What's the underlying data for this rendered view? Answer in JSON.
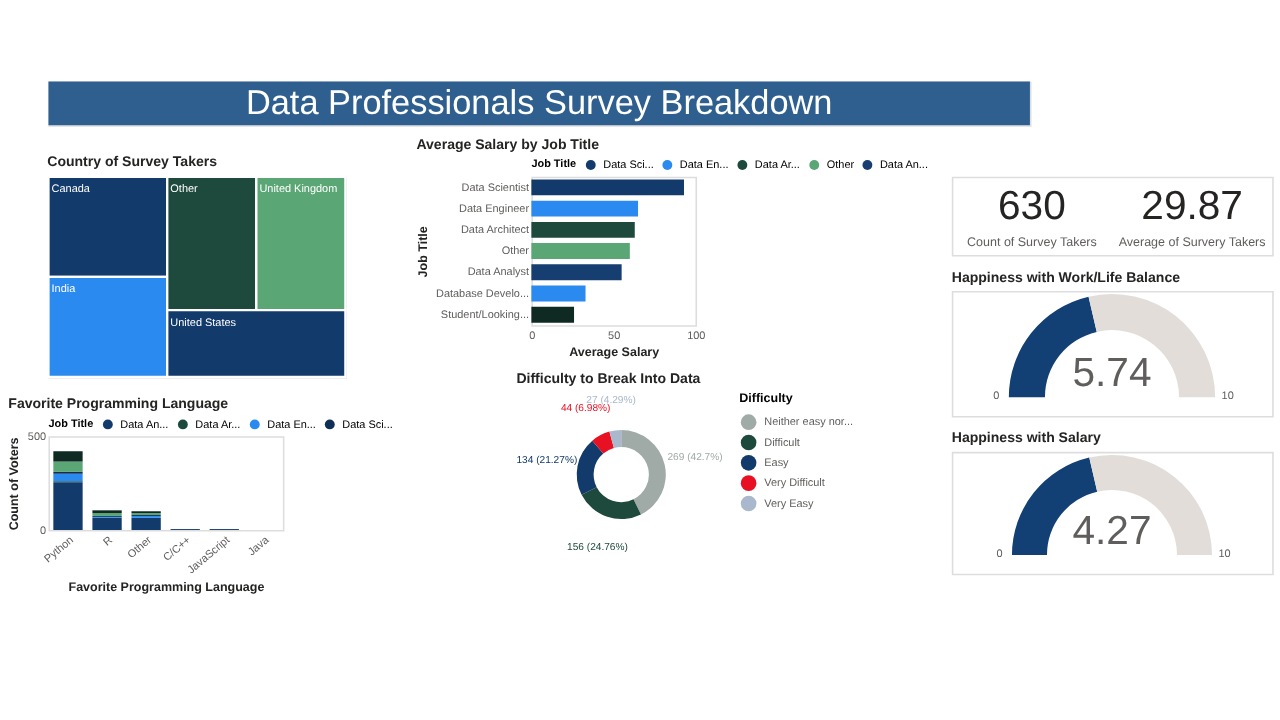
{
  "chart_data": [
    {
      "type": "other",
      "title": "Data Professionals Survey Breakdown"
    },
    {
      "type": "other",
      "title": "Country of Survey Takers",
      "categories": [
        "Canada",
        "India",
        "Other",
        "United Kingdom",
        "United States"
      ],
      "colors": [
        "#123a6b",
        "#2a8af0",
        "#1e4a3e",
        "#5aa675",
        "#123a6b"
      ]
    },
    {
      "type": "bar",
      "title": "Average Salary by Job Title",
      "orientation": "horizontal",
      "xlabel": "Average Salary",
      "ylabel": "Job Title",
      "legend_title": "Job Title",
      "legend": "top",
      "categories": [
        "Data Scientist",
        "Data Engineer",
        "Data Architect",
        "Other",
        "Data Analyst",
        "Database Develo...",
        "Student/Looking..."
      ],
      "xlim": [
        0,
        100
      ],
      "xticks": [
        0,
        50,
        100
      ],
      "series": [
        {
          "name": "Data Sci...",
          "color": "#123a6b",
          "values": [
            93,
            null,
            null,
            null,
            null,
            null,
            null
          ]
        },
        {
          "name": "Data En...",
          "color": "#2a8af0",
          "values": [
            null,
            65,
            null,
            null,
            null,
            null,
            null
          ]
        },
        {
          "name": "Data Ar...",
          "color": "#1e4a3e",
          "values": [
            null,
            null,
            63,
            null,
            null,
            null,
            null
          ]
        },
        {
          "name": "Other",
          "color": "#5aa675",
          "values": [
            null,
            null,
            null,
            60,
            null,
            null,
            null
          ]
        },
        {
          "name": "Data An...",
          "color": "#163e70",
          "values": [
            null,
            null,
            null,
            null,
            55,
            null,
            null
          ]
        },
        {
          "color": "#2a8af0",
          "values": [
            null,
            null,
            null,
            null,
            null,
            33,
            null
          ]
        },
        {
          "color": "#0e2a22",
          "values": [
            null,
            null,
            null,
            null,
            null,
            null,
            26
          ]
        }
      ]
    },
    {
      "type": "other",
      "categories": [
        "Count of Survey Takers",
        "Average of Survery Takers"
      ],
      "values": [
        630,
        29.87
      ],
      "data_labels": true
    },
    {
      "type": "other",
      "title": "Happiness with Work/Life Balance",
      "values": [
        5.74
      ],
      "annotations": [
        "0",
        "10"
      ],
      "colors": [
        "#123f74"
      ],
      "data_labels": true
    },
    {
      "type": "bar",
      "title": "Favorite Programming Language",
      "stacked": true,
      "xlabel": "Favorite Programming Language",
      "ylabel": "Count of Voters",
      "legend_title": "Job Title",
      "legend": "top",
      "categories": [
        "Python",
        "R",
        "Other",
        "C/C++",
        "JavaScript",
        "Java"
      ],
      "ylim": [
        0,
        500
      ],
      "yticks": [
        0,
        500
      ],
      "series": [
        {
          "name": "Data An...",
          "color": "#123a6b",
          "values": [
            255,
            65,
            65,
            5,
            5,
            0
          ]
        },
        {
          "name": "Data Ar...",
          "color": "#1e4a3e",
          "values": [
            5,
            0,
            0,
            0,
            0,
            0
          ]
        },
        {
          "name": "Data En...",
          "color": "#2a8af0",
          "values": [
            40,
            5,
            10,
            0,
            0,
            0
          ]
        },
        {
          "name": "Data Sci...",
          "color": "#0f2f57",
          "values": [
            10,
            5,
            5,
            0,
            0,
            0
          ]
        },
        {
          "color": "#5aa675",
          "values": [
            55,
            15,
            10,
            0,
            0,
            0
          ]
        },
        {
          "color": "#0e2a22",
          "values": [
            55,
            15,
            10,
            0,
            0,
            0
          ]
        }
      ]
    },
    {
      "type": "donut",
      "title": "Difficulty to Break Into Data",
      "legend_title": "Difficulty",
      "legend": "right",
      "categories": [
        "Neither easy nor...",
        "Difficult",
        "Easy",
        "Very Difficult",
        "Very Easy"
      ],
      "values": [
        269,
        156,
        134,
        44,
        27
      ],
      "colors": [
        "#a0aaa6",
        "#1e4a3e",
        "#123a6b",
        "#e81123",
        "#a9b8cc"
      ],
      "value_labels": [
        "269 (42.7%)",
        "156 (24.76%)",
        "134 (21.27%)",
        "44 (6.98%)",
        "27 (4.29%)"
      ]
    },
    {
      "type": "other",
      "title": "Happiness with Salary",
      "values": [
        4.27
      ],
      "annotations": [
        "0",
        "10"
      ],
      "colors": [
        "#123f74"
      ],
      "data_labels": true
    }
  ]
}
